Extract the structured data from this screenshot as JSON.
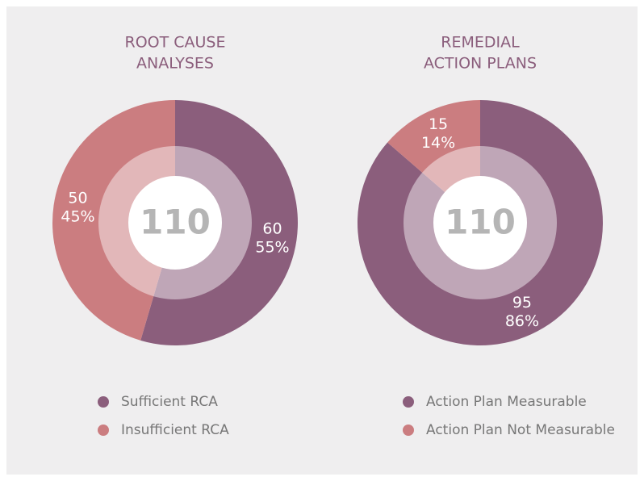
{
  "chart_data": [
    {
      "type": "pie",
      "title": [
        "ROOT CAUSE",
        "ANALYSES"
      ],
      "total": 110,
      "series": [
        {
          "name": "Sufficient RCA",
          "color": "#8b5e7c"
        },
        {
          "name": "Insufficient RCA",
          "color": "#cb7d80"
        }
      ],
      "values": [
        60,
        50
      ],
      "shares": [
        55,
        45
      ],
      "share_labels": [
        "55%",
        "45%"
      ]
    },
    {
      "type": "pie",
      "title": [
        "REMEDIAL",
        "ACTION PLANS"
      ],
      "total": 110,
      "series": [
        {
          "name": "Action Plan Measurable",
          "color": "#8b5e7c"
        },
        {
          "name": "Action Plan Not Measurable",
          "color": "#cb7d80"
        }
      ],
      "values": [
        95,
        15
      ],
      "shares": [
        86,
        14
      ],
      "share_labels": [
        "86%",
        "14%"
      ]
    }
  ]
}
